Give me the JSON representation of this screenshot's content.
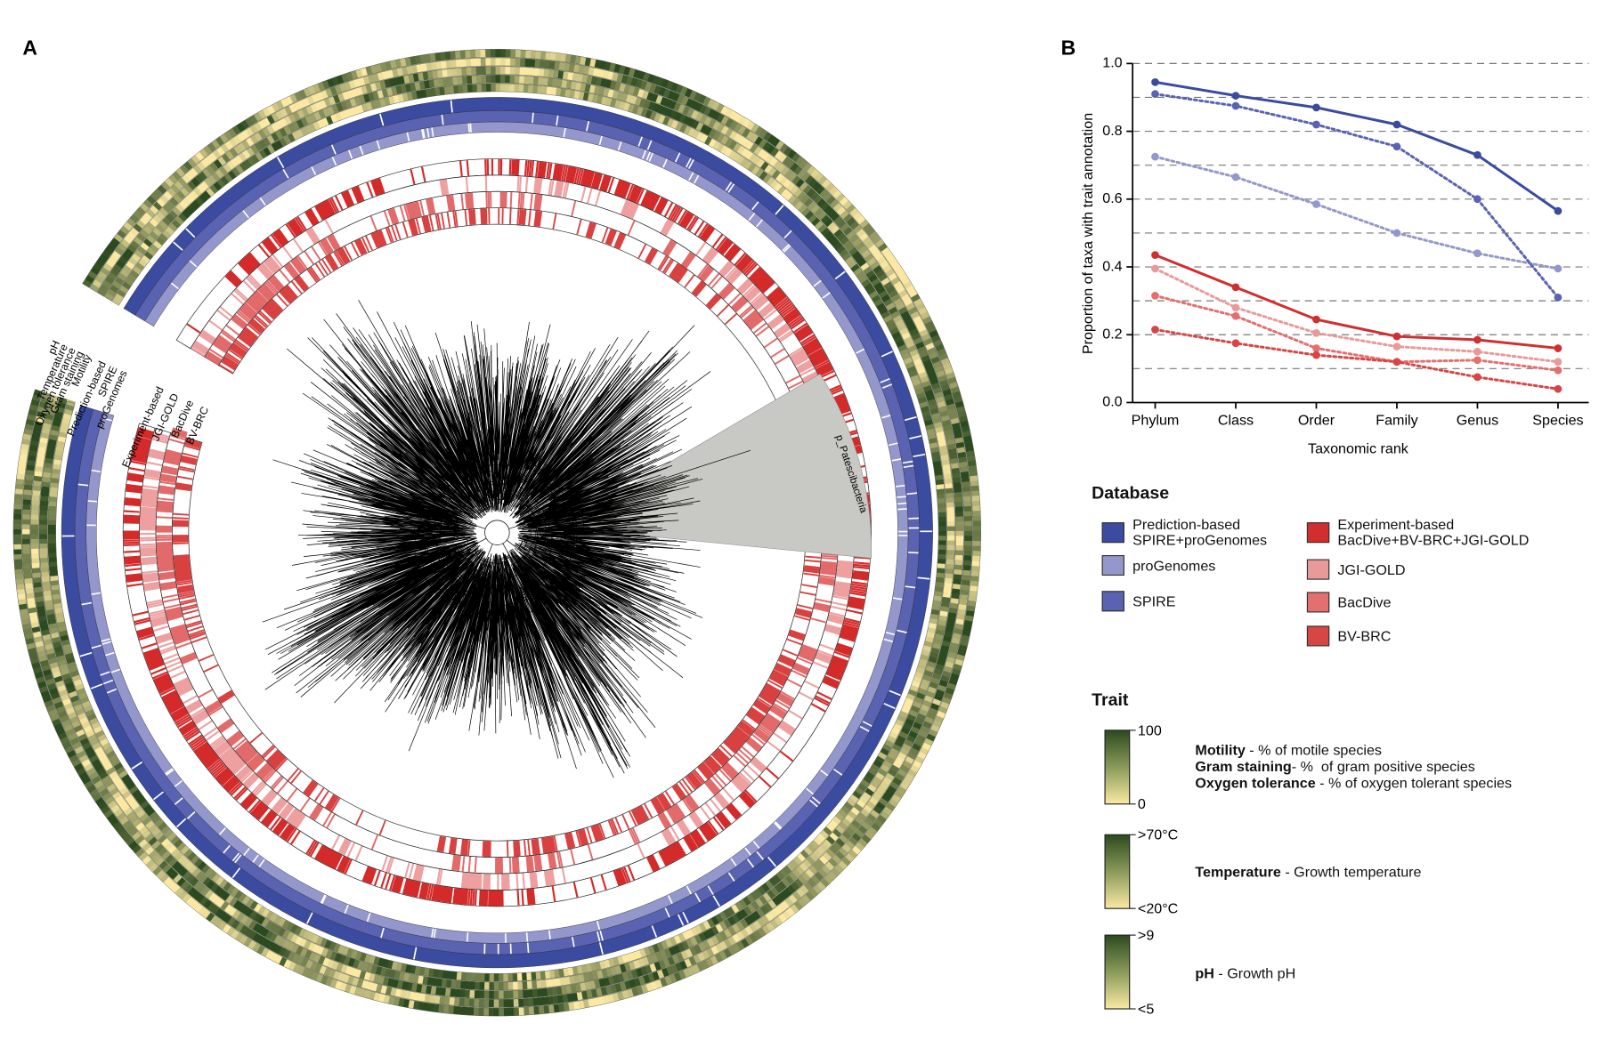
{
  "panel_a": {
    "panel_label": "A",
    "trait_ring_labels": [
      "pH",
      "Temperature",
      "Oxygen tolerance",
      "Gram staining",
      "Motility"
    ],
    "database_ring_labels": [
      "Prediction-based",
      "SPIRE",
      "proGenomes"
    ],
    "experiment_ring_labels": [
      "Experiment-based",
      "JGI-GOLD",
      "BacDive",
      "BV-BRC"
    ],
    "clade_label": "p_Patescibacteria"
  },
  "chart_data": {
    "type": "line",
    "panel_label": "B",
    "y_label": "Proportion of taxa with trait annotation",
    "x_label": "Taxonomic rank",
    "categories": [
      "Phylum",
      "Class",
      "Order",
      "Family",
      "Genus",
      "Species"
    ],
    "ylim": [
      0,
      1
    ],
    "yticks": [
      {
        "value": 0,
        "label": "0.0"
      },
      0.2,
      0.4,
      0.6,
      0.8,
      {
        "value": 1,
        "label": "1.0"
      }
    ],
    "ygrid": [
      0.1,
      0.2,
      0.3,
      0.4,
      0.5,
      0.6,
      0.7,
      0.8,
      0.9,
      1.0
    ],
    "legend_title": "Database",
    "series": [
      {
        "name": "Prediction-based\nSPIRE+proGenomes",
        "color": "#3a4ba0",
        "dash": "solid",
        "values": [
          0.945,
          0.905,
          0.87,
          0.82,
          0.73,
          0.565
        ]
      },
      {
        "name": "proGenomes",
        "color": "#9497cc",
        "dash": "dotted",
        "values": [
          0.725,
          0.665,
          0.585,
          0.5,
          0.44,
          0.395
        ]
      },
      {
        "name": "SPIRE",
        "color": "#5a62b2",
        "dash": "dotted",
        "values": [
          0.91,
          0.875,
          0.82,
          0.755,
          0.6,
          0.31
        ]
      },
      {
        "name": "Experiment-based\nBacDive+BV-BRC+JGI-GOLD",
        "color": "#d12f2f",
        "dash": "solid",
        "values": [
          0.435,
          0.34,
          0.245,
          0.195,
          0.185,
          0.16
        ]
      },
      {
        "name": "JGI-GOLD",
        "color": "#e89a9a",
        "dash": "dotted",
        "values": [
          0.395,
          0.28,
          0.205,
          0.165,
          0.15,
          0.12
        ]
      },
      {
        "name": "BacDive",
        "color": "#e36f6f",
        "dash": "dotted",
        "values": [
          0.315,
          0.255,
          0.16,
          0.12,
          0.125,
          0.095
        ]
      },
      {
        "name": "BV-BRC",
        "color": "#d84545",
        "dash": "dotted",
        "values": [
          0.215,
          0.175,
          0.14,
          0.12,
          0.075,
          0.04
        ]
      }
    ]
  },
  "trait_legend": {
    "title": "Trait",
    "colorbars": [
      {
        "max": 100,
        "min": 0
      },
      {
        "max": ">70°C",
        "min": "<20°C"
      },
      {
        "max": ">9",
        "min": "<5"
      }
    ],
    "descriptions": [
      {
        "bold": "Motility",
        "text": " - % of motile species"
      },
      {
        "bold": "Gram staining",
        "text": "- %  of gram positive species"
      },
      {
        "bold": "Oxygen tolerance",
        "text": " - % of oxygen tolerant species"
      },
      {
        "bold": "Temperature",
        "text": " - Growth temperature"
      },
      {
        "bold": "pH",
        "text": " - Growth pH"
      }
    ]
  }
}
